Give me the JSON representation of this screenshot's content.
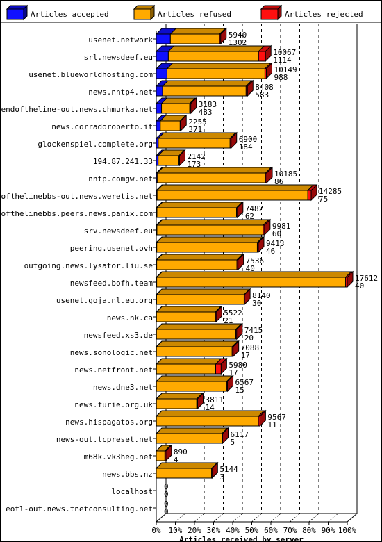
{
  "chart_data": {
    "type": "bar",
    "stacked": true,
    "orientation": "horizontal",
    "title": "",
    "xlabel": "Articles received by server",
    "ylabel": "",
    "xlim": [
      0,
      100
    ],
    "x_ticks": [
      "0%",
      "10%",
      "20%",
      "30%",
      "40%",
      "50%",
      "60%",
      "70%",
      "80%",
      "90%",
      "100%"
    ],
    "grid": true,
    "legend_position": "top",
    "series": [
      {
        "name": "Articles accepted",
        "color": "#1010ff"
      },
      {
        "name": "Articles refused",
        "color": "#ffaa00"
      },
      {
        "name": "Articles rejected",
        "color": "#ff1010"
      }
    ],
    "categories": [
      "usenet.network",
      "srl.newsdeef.eu",
      "usenet.blueworldhosting.com",
      "news.nntp4.net",
      "endoftheline-out.news.chmurka.net",
      "news.corradoroberto.it",
      "glockenspiel.complete.org",
      "194.87.241.33",
      "nntp.comgw.net",
      "endofthelinebbs-out.news.weretis.net",
      "endofthelinebbs.peers.news.panix.com",
      "srv.newsdeef.eu",
      "peering.usenet.ovh",
      "outgoing.news.lysator.liu.se",
      "newsfeed.bofh.team",
      "usenet.goja.nl.eu.org",
      "news.nk.ca",
      "newsfeed.xs3.de",
      "news.sonologic.net",
      "news.netfront.net",
      "news.dne3.net",
      "news.furie.org.uk",
      "news.hispagatos.org",
      "news-out.tcpreset.net",
      "m68k.vk3heg.net",
      "news.bbs.nz",
      "localhost",
      "eotl-out.news.tnetconsulting.net"
    ],
    "total_labels": [
      "5940",
      "10067",
      "10149",
      "8408",
      "3183",
      "2255",
      "6900",
      "2142",
      "10185",
      "14285",
      "7482",
      "9981",
      "9413",
      "7536",
      "17612",
      "8140",
      "5522",
      "7415",
      "7088",
      "5980",
      "6567",
      "3811",
      "9567",
      "6117",
      "890",
      "5144",
      "0",
      "0"
    ],
    "accepted_labels": [
      "1302",
      "1114",
      "988",
      "583",
      "483",
      "371",
      "184",
      "173",
      "86",
      "75",
      "62",
      "60",
      "46",
      "40",
      "40",
      "30",
      "21",
      "20",
      "17",
      "17",
      "15",
      "14",
      "11",
      "5",
      "4",
      "3",
      "0",
      "0"
    ],
    "totals": [
      5940,
      10067,
      10149,
      8408,
      3183,
      2255,
      6900,
      2142,
      10185,
      14285,
      7482,
      9981,
      9413,
      7536,
      17612,
      8140,
      5522,
      7415,
      7088,
      5980,
      6567,
      3811,
      9567,
      6117,
      890,
      5144,
      0,
      0
    ],
    "accepted": [
      1302,
      1114,
      988,
      583,
      483,
      371,
      184,
      173,
      86,
      75,
      62,
      60,
      46,
      40,
      40,
      30,
      21,
      20,
      17,
      17,
      15,
      14,
      11,
      5,
      4,
      3,
      0,
      0
    ],
    "refused": [
      4540,
      8320,
      9030,
      7700,
      2600,
      1830,
      6620,
      1920,
      9990,
      13900,
      7340,
      9800,
      9270,
      7400,
      17420,
      8070,
      5420,
      7310,
      6980,
      5460,
      6480,
      3720,
      9410,
      6050,
      790,
      5100,
      0,
      0
    ],
    "rejected": [
      98,
      633,
      131,
      125,
      100,
      54,
      96,
      49,
      109,
      310,
      80,
      121,
      97,
      96,
      152,
      40,
      81,
      85,
      91,
      503,
      72,
      77,
      146,
      62,
      96,
      41,
      0,
      0
    ]
  }
}
